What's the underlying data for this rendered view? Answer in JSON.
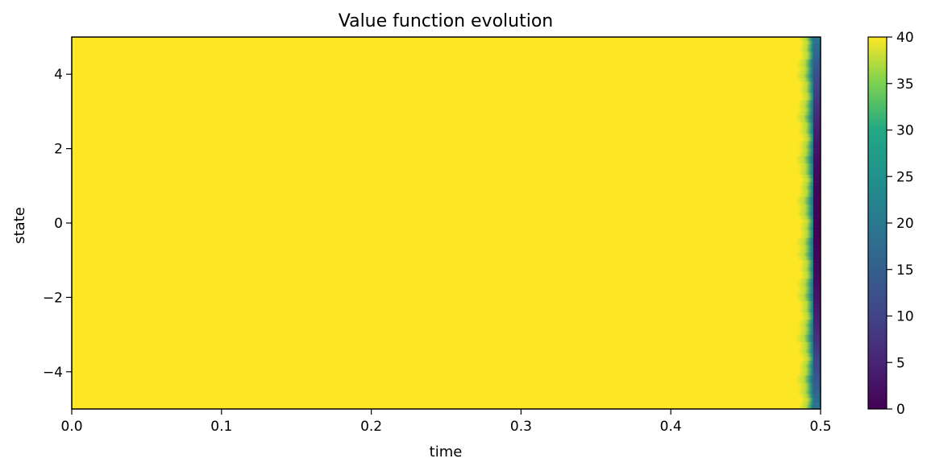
{
  "chart_data": {
    "type": "heatmap",
    "title": "Value function evolution",
    "xlabel": "time",
    "ylabel": "state",
    "xlim": [
      0.0,
      0.5
    ],
    "ylim": [
      -5,
      5
    ],
    "x_ticks": [
      0.0,
      0.1,
      0.2,
      0.3,
      0.4,
      0.5
    ],
    "x_tick_labels": [
      "0.0",
      "0.1",
      "0.2",
      "0.3",
      "0.4",
      "0.5"
    ],
    "y_ticks": [
      -4,
      -2,
      0,
      2,
      4
    ],
    "y_tick_labels": [
      "−4",
      "−2",
      "0",
      "2",
      "4"
    ],
    "colormap": "viridis",
    "clim": [
      0,
      40
    ],
    "colorbar_ticks": [
      0,
      5,
      10,
      15,
      20,
      25,
      30,
      35,
      40
    ],
    "colorbar_tick_labels": [
      "0",
      "5",
      "10",
      "15",
      "20",
      "25",
      "30",
      "35",
      "40"
    ],
    "grid": false,
    "description_of_values": {
      "plateau_value": 40,
      "transition_start_time": 0.485,
      "terminal_value_center": 0,
      "terminal_value_edges": 20
    }
  }
}
